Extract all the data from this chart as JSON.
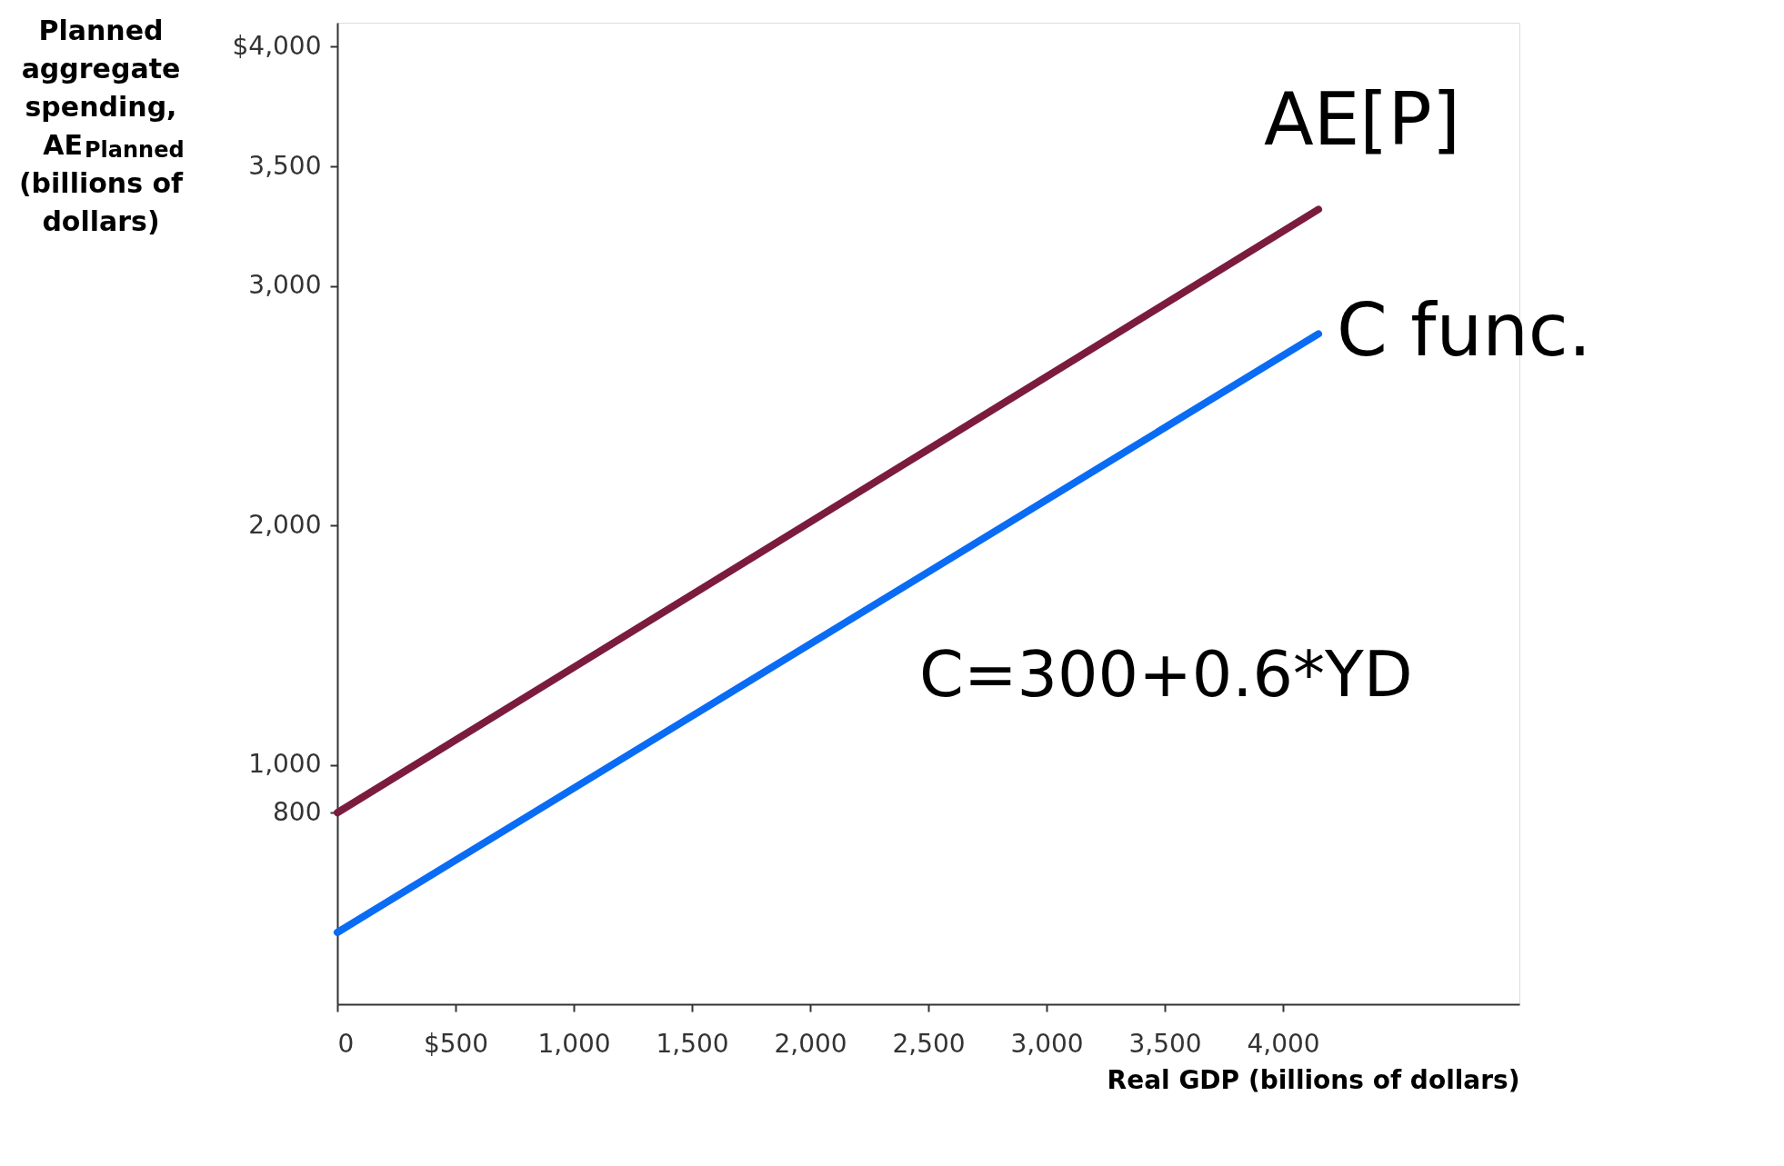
{
  "chart_data": {
    "type": "line",
    "xlabel": "Real GDP (billions of dollars)",
    "ylabel": "Planned aggregate spending, AE$_{Planned}$ (billions of dollars)",
    "x": [
      0,
      4150
    ],
    "series": [
      {
        "name": "AE[P]",
        "color": "#7b1c3e",
        "values": [
          800,
          3320
        ]
      },
      {
        "name": "C func.",
        "color": "#0a6cf5",
        "values": [
          300,
          2800
        ]
      }
    ],
    "annotations": [
      "C=300+0.6*YD"
    ],
    "xlim": [
      0,
      5000
    ],
    "ylim": [
      0,
      4100
    ],
    "xticks": [
      {
        "value": 0,
        "label": "0"
      },
      {
        "value": 500,
        "label": "$500"
      },
      {
        "value": 1000,
        "label": "1,000"
      },
      {
        "value": 1500,
        "label": "1,500"
      },
      {
        "value": 2000,
        "label": "2,000"
      },
      {
        "value": 2500,
        "label": "2,500"
      },
      {
        "value": 3000,
        "label": "3,000"
      },
      {
        "value": 3500,
        "label": "3,500"
      },
      {
        "value": 4000,
        "label": "4,000"
      }
    ],
    "yticks": [
      {
        "value": 800,
        "label": "800"
      },
      {
        "value": 1000,
        "label": "1,000"
      },
      {
        "value": 2000,
        "label": "2,000"
      },
      {
        "value": 3000,
        "label": "3,000"
      },
      {
        "value": 3500,
        "label": "3,500"
      },
      {
        "value": 4000,
        "label": "$4,000"
      }
    ],
    "grid": false,
    "legend": false,
    "line_style": "solid",
    "marker": "none"
  }
}
